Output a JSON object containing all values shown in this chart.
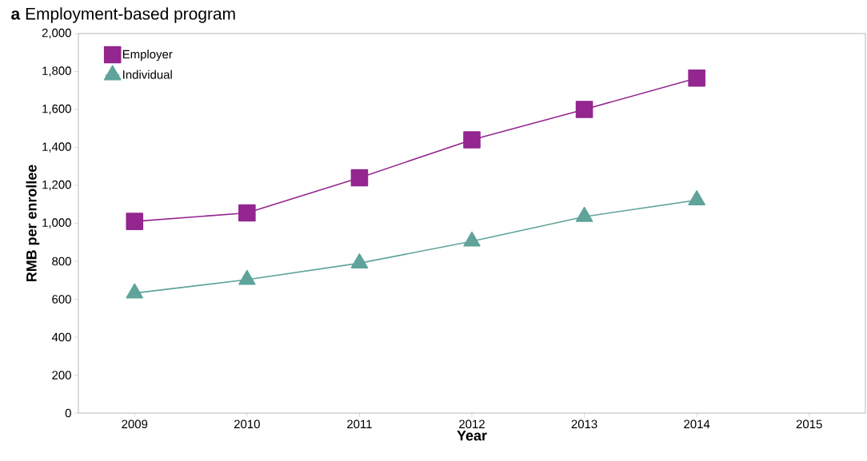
{
  "chart_data": {
    "type": "line",
    "title": "**a** Employment-based program",
    "xlabel": "Year",
    "ylabel": "RMB per enrollee",
    "x": [
      2009,
      2010,
      2011,
      2012,
      2013,
      2014
    ],
    "series": [
      {
        "name": "Employer",
        "color": "#93268f",
        "marker": "square",
        "values": [
          1010,
          1055,
          1240,
          1440,
          1600,
          1765
        ]
      },
      {
        "name": "Individual",
        "color": "#5fa39a",
        "marker": "triangle",
        "values": [
          632,
          703,
          790,
          905,
          1035,
          1122
        ]
      }
    ],
    "xlim": [
      2008.5,
      2015.5
    ],
    "xticks": [
      2009,
      2010,
      2011,
      2012,
      2013,
      2014,
      2015
    ],
    "ylim": [
      0,
      2000
    ],
    "yticks": [
      0,
      200,
      400,
      600,
      800,
      {
        "value": 1000,
        "label": "1,000"
      },
      {
        "value": 1200,
        "label": "1,200"
      },
      {
        "value": 1400,
        "label": "1,400"
      },
      {
        "value": 1600,
        "label": "1,600"
      },
      {
        "value": 1800,
        "label": "1,800"
      },
      {
        "value": 2000,
        "label": "2,000"
      }
    ],
    "legend": "top left",
    "line_style": "solid",
    "grid": false
  }
}
